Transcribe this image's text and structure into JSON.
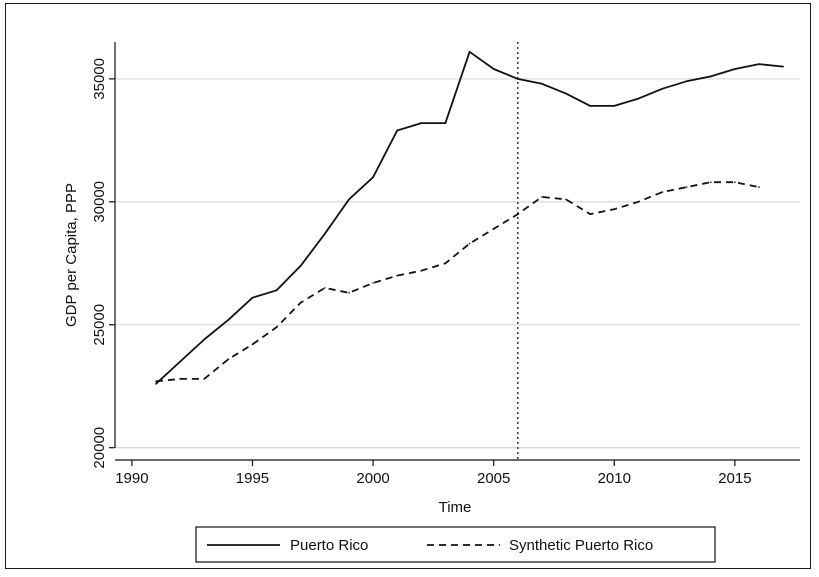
{
  "chart_data": {
    "type": "line",
    "title": "",
    "xlabel": "Time",
    "ylabel": "GDP per Capita, PPP",
    "xlim": [
      1989.3,
      2017.7
    ],
    "ylim": [
      19500,
      36500
    ],
    "x_ticks": [
      1990,
      1995,
      2000,
      2005,
      2010,
      2015
    ],
    "y_ticks": [
      20000,
      25000,
      30000,
      35000
    ],
    "grid": "horizontal",
    "treatment_line_x": 2006,
    "legend_position": "bottom",
    "series": [
      {
        "name": "Puerto Rico",
        "style": "solid",
        "x": [
          1991,
          1992,
          1993,
          1994,
          1995,
          1996,
          1997,
          1998,
          1999,
          2000,
          2001,
          2002,
          2003,
          2004,
          2005,
          2006,
          2007,
          2008,
          2009,
          2010,
          2011,
          2012,
          2013,
          2014,
          2015,
          2016,
          2017
        ],
        "values": [
          22600,
          23500,
          24400,
          25200,
          26100,
          26400,
          27400,
          28700,
          30100,
          31000,
          32900,
          33200,
          33200,
          36100,
          35400,
          35000,
          34800,
          34400,
          33900,
          33900,
          34200,
          34600,
          34900,
          35100,
          35400,
          35600,
          35500
        ]
      },
      {
        "name": "Synthetic Puerto Rico",
        "style": "dashed",
        "x": [
          1991,
          1992,
          1993,
          1994,
          1995,
          1996,
          1997,
          1998,
          1999,
          2000,
          2001,
          2002,
          2003,
          2004,
          2005,
          2006,
          2007,
          2008,
          2009,
          2010,
          2011,
          2012,
          2013,
          2014,
          2015,
          2016
        ],
        "values": [
          22700,
          22800,
          22800,
          23600,
          24200,
          24900,
          25900,
          26500,
          26300,
          26700,
          27000,
          27200,
          27500,
          28300,
          28900,
          29500,
          30200,
          30100,
          29500,
          29700,
          30000,
          30400,
          30600,
          30800,
          30800,
          30600
        ]
      }
    ]
  }
}
